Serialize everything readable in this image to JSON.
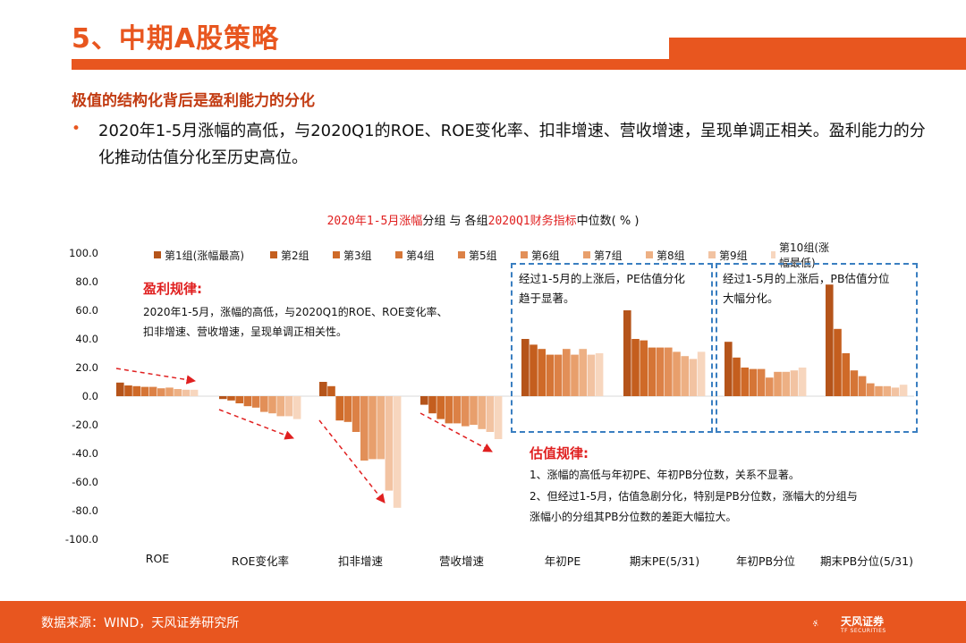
{
  "header": {
    "title": "5、中期A股策略",
    "subtitle": "极值的结构化背后是盈利能力的分化"
  },
  "body": {
    "bullet": "•",
    "paragraph": "2020年1-5月涨幅的高低，与2020Q1的ROE、ROE变化率、扣非增速、营收增速，呈现单调正相关。盈利能力的分化推动估值分化至历史高位。"
  },
  "chart_title": {
    "part1": "2020年1-5月涨幅",
    "part2": "分组 与 各组",
    "part3": "2020Q1财务指标",
    "part4": "中位数( % )"
  },
  "annotations": {
    "profit_title": "盈利规律:",
    "profit_line1": "2020年1-5月，涨幅的高低，与2020Q1的ROE、ROE变化率、",
    "profit_line2": "扣非增速、营收增速，呈现单调正相关性。",
    "box1_line1": "经过1-5月的上涨后，PE估值分化",
    "box1_line2": "趋于显著。",
    "box2_line1": "经过1-5月的上涨后，PB估值分位",
    "box2_line2": "大幅分化。",
    "val_title": "估值规律:",
    "val_line1": "1、涨幅的高低与年初PE、年初PB分位数，关系不显著。",
    "val_line2": "2、但经过1-5月，估值急剧分化，特别是PB分位数，涨幅大的分组与",
    "val_line3": "涨幅小的分组其PB分位数的差距大幅拉大。"
  },
  "footer": {
    "source": "数据来源：WIND，天风证券研究所",
    "logo_text": "天风证券",
    "logo_sub": "TF SECURITIES"
  },
  "colors": {
    "accent": "#e8561f",
    "red_text": "#e02020",
    "box_border": "#3a7fc1"
  },
  "chart_data": {
    "type": "bar",
    "title": "2020年1-5月涨幅分组 与 各组2020Q1财务指标中位数( % )",
    "ylim": [
      -100,
      100
    ],
    "yticks": [
      "100.0",
      "80.0",
      "60.0",
      "40.0",
      "20.0",
      "0.0",
      "-20.0",
      "-40.0",
      "-60.0",
      "-80.0",
      "-100.0"
    ],
    "yticks_values": [
      100,
      80,
      60,
      40,
      20,
      0,
      -20,
      -40,
      -60,
      -80,
      -100
    ],
    "legend_position": "top",
    "categories": [
      "ROE",
      "ROE变化率",
      "扣非增速",
      "营收增速",
      "年初PE",
      "期末PE(5/31)",
      "年初PB分位",
      "期末PB分位(5/31)"
    ],
    "series": [
      {
        "name": "第1组(涨幅最高)",
        "color": "#b5541a",
        "values": [
          9.5,
          -2,
          10,
          -6,
          40,
          60,
          38,
          78
        ]
      },
      {
        "name": "第2组",
        "color": "#c45e1e",
        "values": [
          7.5,
          -3,
          7,
          -12,
          36,
          40,
          27,
          47
        ]
      },
      {
        "name": "第3组",
        "color": "#cf6a28",
        "values": [
          7,
          -5,
          -17,
          -16,
          33,
          39,
          20,
          30
        ]
      },
      {
        "name": "第4组",
        "color": "#d57536",
        "values": [
          6.5,
          -7,
          -18,
          -19,
          29,
          34,
          19,
          18
        ]
      },
      {
        "name": "第5组",
        "color": "#dc8146",
        "values": [
          6.5,
          -8,
          -25,
          -19,
          29,
          34,
          19,
          14
        ]
      },
      {
        "name": "第6组",
        "color": "#e28f58",
        "values": [
          5.5,
          -11,
          -45,
          -21,
          33,
          34,
          13,
          9
        ]
      },
      {
        "name": "第7组",
        "color": "#e89f6c",
        "values": [
          6,
          -12,
          -44,
          -20,
          29,
          31,
          17,
          7
        ]
      },
      {
        "name": "第8组",
        "color": "#edb084",
        "values": [
          5,
          -14,
          -44,
          -23,
          33,
          28,
          17,
          7
        ]
      },
      {
        "name": "第9组",
        "color": "#f2c3a2",
        "values": [
          4.5,
          -14,
          -66,
          -25,
          29,
          26,
          18,
          6
        ]
      },
      {
        "name": "第10组(涨幅最低)",
        "color": "#f7d6be",
        "values": [
          4.5,
          -16,
          -78,
          -30,
          30,
          31,
          20,
          8
        ]
      }
    ]
  }
}
